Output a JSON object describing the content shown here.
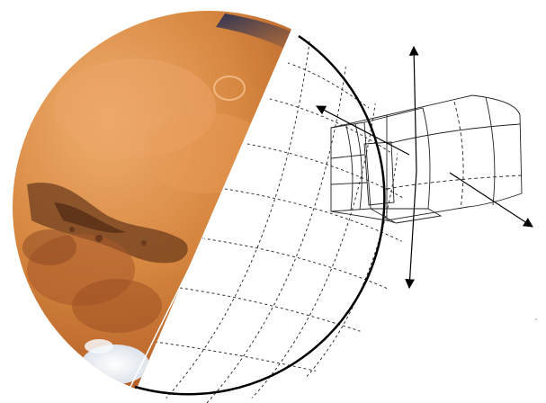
{
  "figure": {
    "subject": "Mars",
    "colors": {
      "background": "#ffffff",
      "outline": "#000000",
      "grid": "#333333",
      "wireframe": "#222222",
      "mars_light": "#e3a063",
      "mars_mid": "#c26d2f",
      "mars_dark": "#6a3a1f",
      "polar_cap": "#f4f6fa",
      "upper_edge_blue": "#2b3a66"
    },
    "icons": [
      "arrow-icon"
    ]
  }
}
